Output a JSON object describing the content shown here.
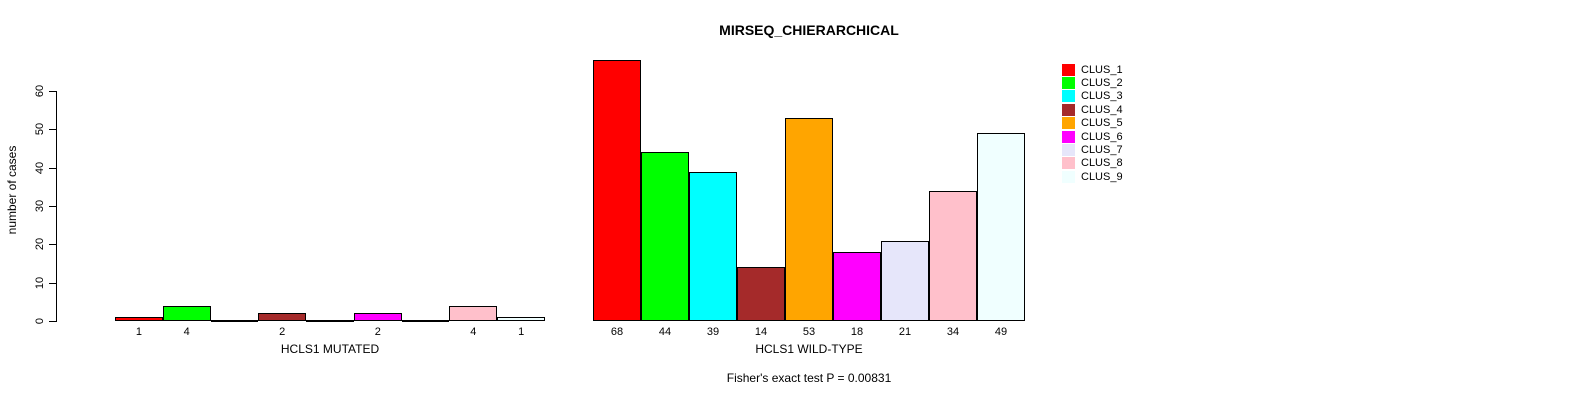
{
  "chart_data": {
    "type": "bar",
    "title": "MIRSEQ_CHIERARCHICAL",
    "subtitle": "Fisher's exact test P = 0.00831",
    "ylabel": "number of cases",
    "xlabel": "",
    "ylim": [
      0,
      60
    ],
    "yticks": [
      0,
      10,
      20,
      30,
      40,
      50,
      60
    ],
    "grid": false,
    "legend_position": "right",
    "bar_labels": "value shown under each nonzero bar",
    "categories": [
      "HCLS1 MUTATED",
      "HCLS1 WILD-TYPE"
    ],
    "series": [
      {
        "name": "CLUS_1",
        "color": "#FF0000",
        "values": [
          1,
          68
        ]
      },
      {
        "name": "CLUS_2",
        "color": "#00FF00",
        "values": [
          4,
          44
        ]
      },
      {
        "name": "CLUS_3",
        "color": "#00FFFF",
        "values": [
          0,
          39
        ]
      },
      {
        "name": "CLUS_4",
        "color": "#A52A2A",
        "values": [
          2,
          14
        ]
      },
      {
        "name": "CLUS_5",
        "color": "#FFA500",
        "values": [
          0,
          53
        ]
      },
      {
        "name": "CLUS_6",
        "color": "#FF00FF",
        "values": [
          2,
          18
        ]
      },
      {
        "name": "CLUS_7",
        "color": "#E6E6FA",
        "values": [
          0,
          21
        ]
      },
      {
        "name": "CLUS_8",
        "color": "#FFC0CB",
        "values": [
          4,
          34
        ]
      },
      {
        "name": "CLUS_9",
        "color": "#F0FFFF",
        "values": [
          1,
          49
        ]
      }
    ]
  },
  "colors": {
    "background": "#FFFFFF",
    "axis": "#000000",
    "text": "#000000",
    "bar_border": "#000000"
  }
}
